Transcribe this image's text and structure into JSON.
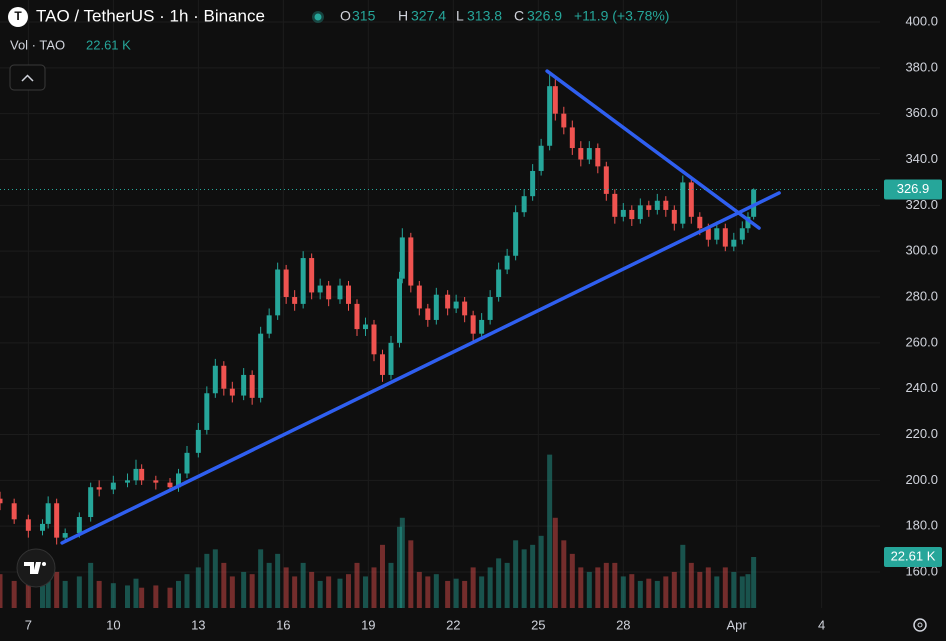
{
  "header": {
    "title": "TAO / TetherUS · 1h · Binance",
    "open_label": "O",
    "high_label": "H",
    "low_label": "L",
    "close_label": "C",
    "change": "+11.9 (+3.78%)",
    "vol_label": "Vol · TAO",
    "vol_value": "22.61 K"
  },
  "chart_data": {
    "type": "candlestick",
    "x": [
      6.0,
      6.5,
      7.0,
      7.5,
      7.7,
      8.0,
      8.3,
      8.8,
      9.2,
      9.5,
      10.0,
      10.5,
      10.8,
      11.0,
      11.5,
      12.0,
      12.3,
      12.6,
      13.0,
      13.3,
      13.6,
      13.9,
      14.2,
      14.6,
      14.9,
      15.2,
      15.5,
      15.8,
      16.1,
      16.4,
      16.7,
      17.0,
      17.3,
      17.6,
      18.0,
      18.3,
      18.6,
      18.9,
      19.2,
      19.5,
      19.8,
      20.1,
      20.2,
      20.5,
      20.8,
      21.1,
      21.4,
      21.8,
      22.1,
      22.4,
      22.7,
      23.0,
      23.3,
      23.6,
      23.9,
      24.2,
      24.5,
      24.8,
      25.1,
      25.4,
      25.6,
      25.9,
      26.2,
      26.5,
      26.8,
      27.1,
      27.4,
      27.7,
      28.0,
      28.3,
      28.6,
      28.9,
      29.2,
      29.5,
      29.8,
      30.1,
      30.4,
      30.7,
      31.0,
      31.3,
      31.6,
      31.9,
      32.2,
      32.4,
      32.6
    ],
    "open": [
      192,
      190,
      183,
      178,
      181,
      190,
      175,
      177,
      184,
      197,
      196,
      199,
      200,
      205,
      200,
      199,
      197,
      203,
      212,
      222,
      238,
      250,
      240,
      237,
      246,
      236,
      264,
      272,
      292,
      280,
      277,
      297,
      282,
      285,
      279,
      285,
      277,
      266,
      268,
      255,
      246,
      260,
      288,
      306,
      285,
      275,
      270,
      281,
      275,
      278,
      272,
      264,
      270,
      280,
      292,
      298,
      317,
      324,
      335,
      346,
      372,
      360,
      354,
      345,
      340,
      345,
      337,
      325,
      315,
      318,
      314,
      320,
      318,
      322,
      318,
      312,
      330,
      315,
      310,
      305,
      310,
      302,
      305,
      310,
      315.0
    ],
    "high": [
      195,
      192,
      185,
      183,
      193,
      192,
      179,
      186,
      199,
      200,
      202,
      203,
      209,
      207,
      202,
      201,
      205,
      215,
      225,
      241,
      253,
      252,
      243,
      249,
      248,
      267,
      275,
      295,
      294,
      283,
      300,
      299,
      288,
      287,
      288,
      287,
      279,
      271,
      270,
      257,
      263,
      291,
      310,
      308,
      287,
      277,
      284,
      283,
      281,
      280,
      274,
      273,
      283,
      295,
      301,
      320,
      327,
      338,
      349,
      378,
      375,
      363,
      357,
      348,
      348,
      347,
      339,
      327,
      321,
      320,
      323,
      322,
      325,
      324,
      320,
      333,
      332,
      317,
      312,
      313,
      312,
      308,
      313,
      317,
      327.4
    ],
    "low": [
      187,
      181,
      175,
      176,
      179,
      172,
      173,
      175,
      182,
      193,
      194,
      197,
      198,
      198,
      196,
      195,
      195,
      201,
      210,
      220,
      236,
      237,
      234,
      235,
      233,
      234,
      262,
      270,
      277,
      274,
      275,
      279,
      279,
      276,
      277,
      274,
      263,
      263,
      252,
      243,
      244,
      258,
      286,
      282,
      272,
      267,
      268,
      272,
      273,
      269,
      261,
      262,
      268,
      278,
      290,
      296,
      315,
      322,
      333,
      344,
      357,
      351,
      342,
      337,
      338,
      334,
      322,
      312,
      313,
      311,
      312,
      315,
      316,
      315,
      309,
      310,
      312,
      307,
      302,
      303,
      300,
      300,
      303,
      308,
      313.8
    ],
    "close": [
      190,
      183,
      178,
      181,
      190,
      175,
      177,
      184,
      197,
      196,
      199,
      200,
      205,
      200,
      199,
      197,
      203,
      212,
      222,
      238,
      250,
      240,
      237,
      246,
      236,
      264,
      272,
      292,
      280,
      277,
      297,
      282,
      285,
      279,
      285,
      277,
      266,
      268,
      255,
      246,
      260,
      288,
      306,
      285,
      275,
      270,
      281,
      275,
      278,
      272,
      264,
      270,
      280,
      292,
      298,
      317,
      324,
      335,
      346,
      372,
      360,
      354,
      345,
      340,
      345,
      337,
      325,
      315,
      318,
      314,
      320,
      318,
      322,
      318,
      312,
      330,
      315,
      310,
      305,
      310,
      302,
      305,
      310,
      315,
      326.9
    ],
    "volume": [
      15000,
      12000,
      14000,
      10000,
      18000,
      16000,
      12000,
      14000,
      20000,
      12000,
      11000,
      10000,
      13000,
      9000,
      10000,
      9000,
      12000,
      15000,
      18000,
      24000,
      26000,
      20000,
      14000,
      16000,
      15000,
      26000,
      20000,
      24000,
      18000,
      14000,
      20000,
      16000,
      12000,
      14000,
      13000,
      15000,
      20000,
      14000,
      18000,
      28000,
      20000,
      36000,
      40000,
      30000,
      16000,
      14000,
      15000,
      12000,
      13000,
      12000,
      18000,
      14000,
      18000,
      22000,
      20000,
      30000,
      26000,
      28000,
      32000,
      68000,
      40000,
      30000,
      24000,
      18000,
      16000,
      18000,
      20000,
      20000,
      14000,
      15000,
      12000,
      13000,
      12000,
      14000,
      16000,
      28000,
      20000,
      16000,
      18000,
      14000,
      18000,
      16000,
      14000,
      15000,
      22610
    ],
    "vlim": [
      0,
      66500
    ],
    "up_color": "#26a69a",
    "down_color": "#ef5350",
    "xlim": [
      6.0,
      37.06
    ],
    "xticks": [
      7,
      10,
      13,
      16,
      19,
      22,
      25,
      28,
      {
        "value": 32,
        "label": "Apr"
      },
      {
        "value": 35,
        "label": "4"
      }
    ],
    "ylim": [
      144.3,
      409.6
    ],
    "yticks": [
      {
        "value": 160,
        "label": "160.0"
      },
      {
        "value": 180,
        "label": "180.0"
      },
      {
        "value": 200,
        "label": "200.0"
      },
      {
        "value": 220,
        "label": "220.0"
      },
      {
        "value": 240,
        "label": "240.0"
      },
      {
        "value": 260,
        "label": "260.0"
      },
      {
        "value": 280,
        "label": "280.0"
      },
      {
        "value": 300,
        "label": "300.0"
      },
      {
        "value": 320,
        "label": "320.0"
      },
      {
        "value": 340,
        "label": "340.0"
      },
      {
        "value": 360,
        "label": "360.0"
      },
      {
        "value": 380,
        "label": "380.0"
      },
      {
        "value": 400,
        "label": "400.0"
      }
    ],
    "grid": true,
    "trendlines": [
      {
        "x": [
          8.19,
          33.5
        ],
        "y": [
          172.7,
          325.4
        ],
        "color": "#2f5ff0"
      },
      {
        "x": [
          25.31,
          32.79
        ],
        "y": [
          378.6,
          310.1
        ],
        "color": "#2f5ff0"
      }
    ]
  }
}
